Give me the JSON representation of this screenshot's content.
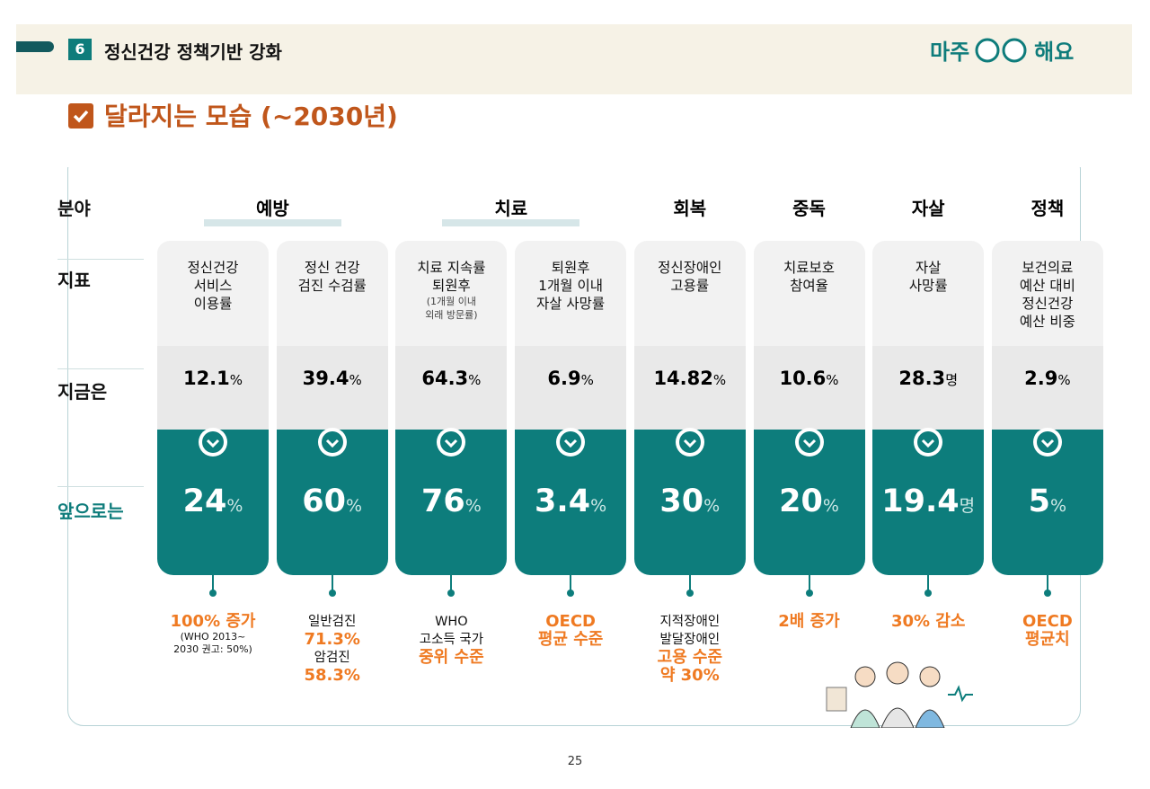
{
  "header": {
    "number": "6",
    "title": "정신건강 정책기반 강화",
    "logo_left": "마주",
    "logo_right": "해요"
  },
  "section_title": "달라지는 모습 (~2030년)",
  "row_labels": [
    "분야",
    "지표",
    "지금은",
    "앞으로는"
  ],
  "fields": [
    "예방",
    "치료",
    "회복",
    "중독",
    "자살",
    "정책"
  ],
  "columns": [
    {
      "indicator": [
        "정신건강",
        "서비스",
        "이용률"
      ],
      "current": {
        "value": 12.1,
        "unit": "%"
      },
      "future": {
        "value": 24,
        "unit": "%"
      },
      "note": [
        {
          "text": "100% 증가",
          "style": "em"
        },
        {
          "text": "(WHO 2013~",
          "style": "small"
        },
        {
          "text": "2030 권고: 50%)",
          "style": "small"
        }
      ]
    },
    {
      "indicator": [
        "정신 건강",
        "검진 수검률"
      ],
      "current": {
        "value": 39.4,
        "unit": "%"
      },
      "future": {
        "value": 60,
        "unit": "%"
      },
      "note": [
        {
          "text": "일반검진",
          "style": "plain"
        },
        {
          "text": "71.3%",
          "style": "em"
        },
        {
          "text": "암검진",
          "style": "plain"
        },
        {
          "text": "58.3%",
          "style": "em"
        }
      ]
    },
    {
      "indicator": [
        "치료 지속률",
        "퇴원후"
      ],
      "indicator_note": [
        "(1개월 이내",
        "외래 방문률)"
      ],
      "current": {
        "value": 64.3,
        "unit": "%"
      },
      "future": {
        "value": 76,
        "unit": "%"
      },
      "note": [
        {
          "text": "WHO",
          "style": "plain"
        },
        {
          "text": "고소득 국가",
          "style": "plain"
        },
        {
          "text": "중위 수준",
          "style": "em"
        }
      ]
    },
    {
      "indicator": [
        "퇴원후",
        "1개월 이내",
        "자살 사망률"
      ],
      "current": {
        "value": 6.9,
        "unit": "%"
      },
      "future": {
        "value": 3.4,
        "unit": "%"
      },
      "note": [
        {
          "text": "OECD",
          "style": "em"
        },
        {
          "text": "평균 수준",
          "style": "em"
        }
      ]
    },
    {
      "indicator": [
        "정신장애인",
        "고용률"
      ],
      "current": {
        "value": 14.82,
        "unit": "%"
      },
      "future": {
        "value": 30,
        "unit": "%"
      },
      "note": [
        {
          "text": "지적장애인",
          "style": "plain"
        },
        {
          "text": "발달장애인",
          "style": "plain"
        },
        {
          "text": "고용 수준",
          "style": "em"
        },
        {
          "text": "약 30%",
          "style": "em"
        }
      ]
    },
    {
      "indicator": [
        "치료보호",
        "참여율"
      ],
      "current": {
        "value": 10.6,
        "unit": "%"
      },
      "future": {
        "value": 20,
        "unit": "%"
      },
      "note": [
        {
          "text": "2배 증가",
          "style": "em"
        }
      ]
    },
    {
      "indicator": [
        "자살",
        "사망률"
      ],
      "current": {
        "value": 28.3,
        "unit": "명"
      },
      "future": {
        "value": 19.4,
        "unit": "명"
      },
      "note": [
        {
          "text": "30% 감소",
          "style": "em"
        }
      ]
    },
    {
      "indicator": [
        "보건의료",
        "예산 대비",
        "정신건강",
        "예산 비중"
      ],
      "current": {
        "value": 2.9,
        "unit": "%"
      },
      "future": {
        "value": 5,
        "unit": "%"
      },
      "note": [
        {
          "text": "OECD",
          "style": "em"
        },
        {
          "text": "평균치",
          "style": "em"
        }
      ]
    }
  ],
  "page_number": "25"
}
